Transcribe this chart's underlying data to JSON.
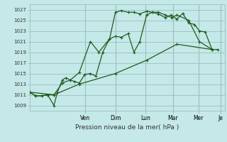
{
  "title": "",
  "xlabel": "Pression niveau de la mer( hPa )",
  "ylabel": "",
  "background_color": "#c5e8e8",
  "plot_bg_color": "#c5e8e8",
  "grid_color": "#9dbebe",
  "line_color": "#1e5c1e",
  "ylim": [
    1008.0,
    1028.0
  ],
  "yticks": [
    1009,
    1011,
    1013,
    1015,
    1017,
    1019,
    1021,
    1023,
    1025,
    1027
  ],
  "day_labels": [
    "Ven",
    "Dim",
    "Lun",
    "Mar",
    "Mer",
    "Je"
  ],
  "day_x": [
    0.285,
    0.44,
    0.595,
    0.735,
    0.865,
    0.98
  ],
  "xlim": [
    0.0,
    1.0
  ],
  "series1_x": [
    0.0,
    0.032,
    0.062,
    0.093,
    0.125,
    0.143,
    0.168,
    0.187,
    0.207,
    0.23,
    0.255,
    0.283,
    0.312,
    0.34,
    0.375,
    0.41,
    0.44,
    0.47,
    0.505,
    0.535,
    0.565,
    0.6,
    0.63,
    0.66,
    0.695,
    0.725,
    0.755,
    0.785,
    0.815,
    0.845,
    0.87,
    0.9,
    0.935,
    0.965
  ],
  "series1_y": [
    1011.5,
    1010.8,
    1010.8,
    1011.0,
    1009.0,
    1011.5,
    1013.8,
    1014.2,
    1013.8,
    1013.5,
    1013.2,
    1014.8,
    1015.0,
    1014.5,
    1019.0,
    1021.5,
    1026.5,
    1026.8,
    1026.5,
    1026.5,
    1026.2,
    1026.7,
    1026.5,
    1026.2,
    1025.5,
    1026.0,
    1025.2,
    1026.3,
    1024.5,
    1024.2,
    1023.0,
    1022.8,
    1019.5,
    1019.5
  ],
  "series2_x": [
    0.0,
    0.032,
    0.062,
    0.093,
    0.125,
    0.168,
    0.21,
    0.255,
    0.312,
    0.355,
    0.41,
    0.44,
    0.47,
    0.505,
    0.535,
    0.565,
    0.6,
    0.63,
    0.66,
    0.695,
    0.73,
    0.755,
    0.815,
    0.87,
    0.935
  ],
  "series2_y": [
    1011.5,
    1010.8,
    1010.8,
    1011.0,
    1011.0,
    1013.2,
    1013.8,
    1015.2,
    1021.0,
    1019.0,
    1021.5,
    1022.0,
    1021.8,
    1022.5,
    1019.0,
    1021.0,
    1026.0,
    1026.5,
    1026.5,
    1026.0,
    1025.5,
    1026.0,
    1025.0,
    1021.0,
    1019.5
  ],
  "series3_x": [
    0.0,
    0.125,
    0.255,
    0.44,
    0.6,
    0.755,
    0.935
  ],
  "series3_y": [
    1011.5,
    1011.0,
    1013.0,
    1015.0,
    1017.5,
    1020.5,
    1019.5
  ],
  "figsize": [
    3.2,
    2.0
  ],
  "dpi": 100
}
